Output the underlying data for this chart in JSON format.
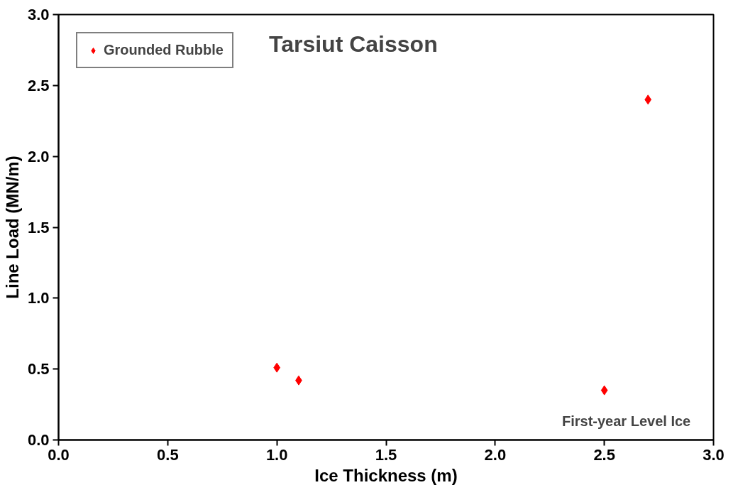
{
  "chart_data": {
    "type": "scatter",
    "title": "Tarsiut Caisson",
    "xlabel": "Ice Thickness (m)",
    "ylabel": "Line Load (MN/m)",
    "series": [
      {
        "name": "Grounded Rubble",
        "color": "#ff0000",
        "x": [
          1.0,
          1.1,
          2.5,
          2.7
        ],
        "values": [
          0.51,
          0.42,
          0.35,
          2.4
        ]
      }
    ],
    "annotations": [
      "First-year Level Ice"
    ],
    "xlim": [
      0,
      3
    ],
    "ylim": [
      0,
      3
    ],
    "xticks": [
      {
        "value": 0,
        "label": "0.0"
      },
      {
        "value": 0.5,
        "label": "0.5"
      },
      {
        "value": 1,
        "label": "1.0"
      },
      {
        "value": 1.5,
        "label": "1.5"
      },
      {
        "value": 2,
        "label": "2.0"
      },
      {
        "value": 2.5,
        "label": "2.5"
      },
      {
        "value": 3,
        "label": "3.0"
      }
    ],
    "yticks": [
      {
        "value": 0,
        "label": "0.0"
      },
      {
        "value": 0.5,
        "label": "0.5"
      },
      {
        "value": 1,
        "label": "1.0"
      },
      {
        "value": 1.5,
        "label": "1.5"
      },
      {
        "value": 2,
        "label": "2.0"
      },
      {
        "value": 2.5,
        "label": "2.5"
      },
      {
        "value": 3,
        "label": "3.0"
      }
    ],
    "grid": false,
    "legend": "top left",
    "marker": "diamond"
  }
}
